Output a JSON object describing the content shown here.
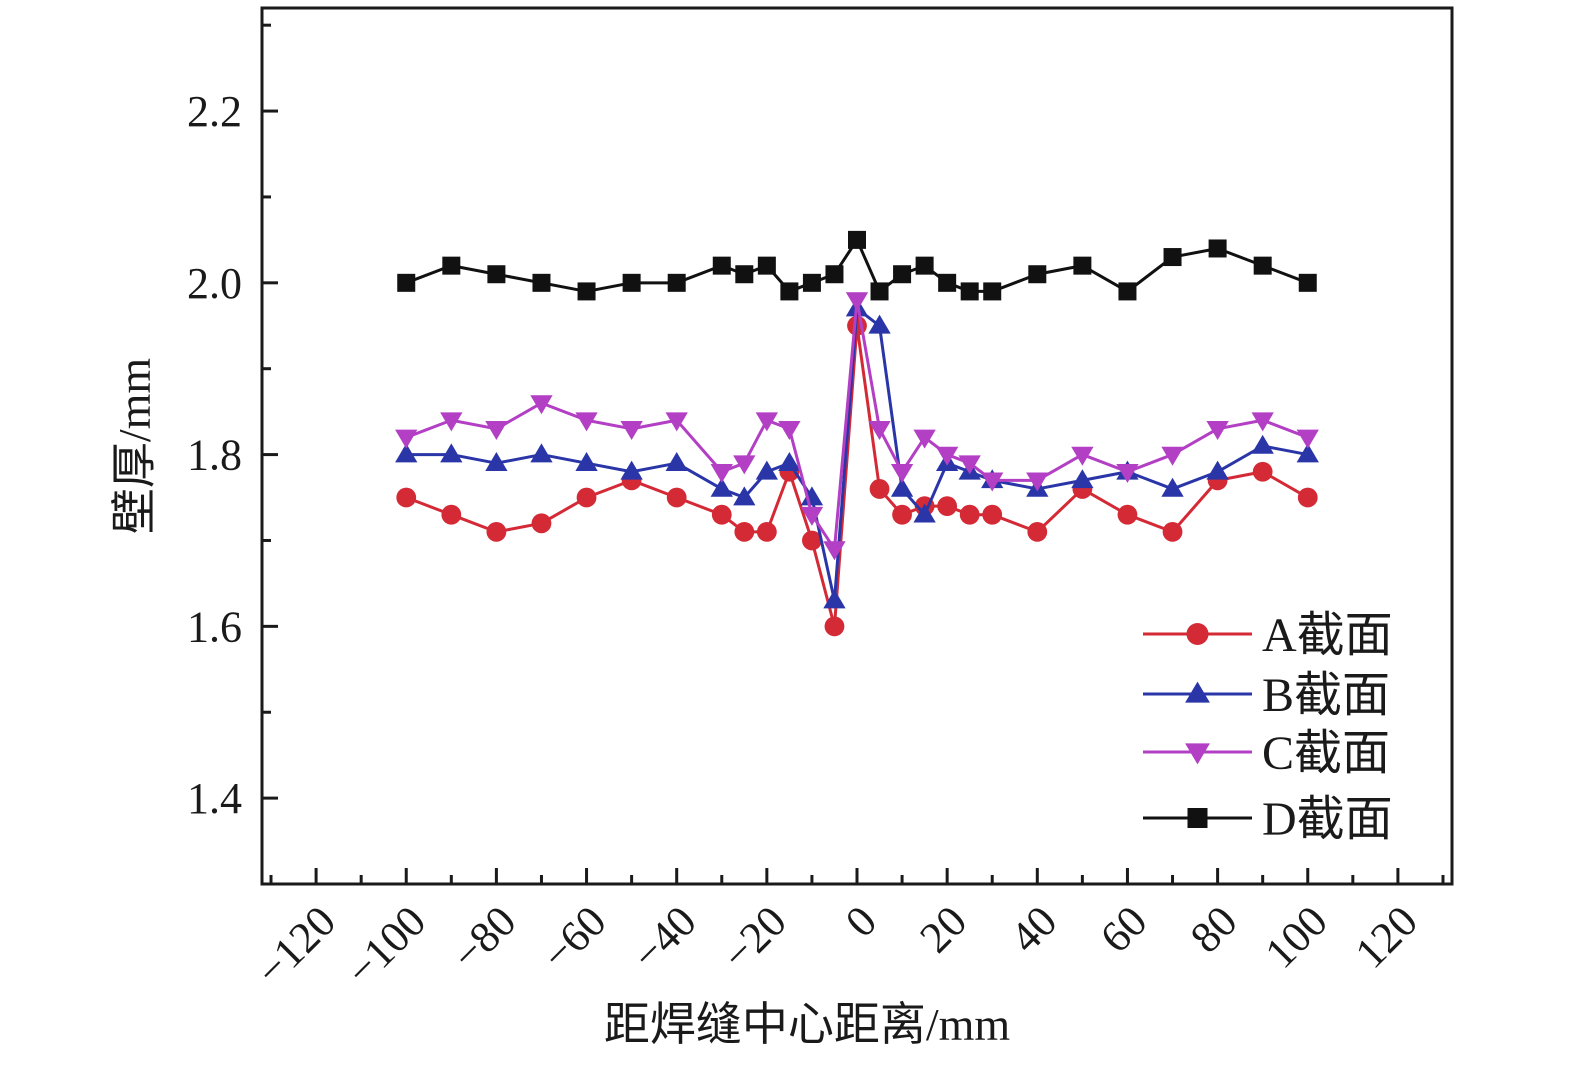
{
  "chart_data": {
    "type": "line",
    "xlabel": "距焊缝中心距离/mm",
    "ylabel": "壁厚/mm",
    "xlim": [
      -132,
      132
    ],
    "ylim": [
      1.3,
      2.32
    ],
    "x_ticks": [
      "−120",
      "−100",
      "−80",
      "−60",
      "−40",
      "−20",
      "0",
      "20",
      "40",
      "60",
      "80",
      "100",
      "120"
    ],
    "x_tick_values": [
      -120,
      -100,
      -80,
      -60,
      -40,
      -20,
      0,
      20,
      40,
      60,
      80,
      100,
      120
    ],
    "y_ticks": [
      "1.4",
      "1.6",
      "1.8",
      "2.0",
      "2.2"
    ],
    "y_tick_values": [
      1.4,
      1.6,
      1.8,
      2.0,
      2.2
    ],
    "x_minor_step": 10,
    "y_minor_step": 0.1,
    "grid": false,
    "legend_position": "bottom-right",
    "x": [
      -100,
      -90,
      -80,
      -70,
      -60,
      -50,
      -40,
      -30,
      -25,
      -20,
      -15,
      -10,
      -5,
      0,
      5,
      10,
      15,
      20,
      25,
      30,
      40,
      50,
      60,
      70,
      80,
      90,
      100
    ],
    "series": [
      {
        "name": "A截面",
        "color": "#d42a36",
        "marker": "circle",
        "values": [
          1.75,
          1.73,
          1.71,
          1.72,
          1.75,
          1.77,
          1.75,
          1.73,
          1.71,
          1.71,
          1.78,
          1.7,
          1.6,
          1.95,
          1.76,
          1.73,
          1.74,
          1.74,
          1.73,
          1.73,
          1.71,
          1.76,
          1.73,
          1.71,
          1.77,
          1.78,
          1.75
        ]
      },
      {
        "name": "B截面",
        "color": "#2a36a8",
        "marker": "triangle-up",
        "values": [
          1.8,
          1.8,
          1.79,
          1.8,
          1.79,
          1.78,
          1.79,
          1.76,
          1.75,
          1.78,
          1.79,
          1.75,
          1.63,
          1.97,
          1.95,
          1.76,
          1.73,
          1.79,
          1.78,
          1.77,
          1.76,
          1.77,
          1.78,
          1.76,
          1.78,
          1.81,
          1.8
        ]
      },
      {
        "name": "C截面",
        "color": "#b23fc4",
        "marker": "triangle-down",
        "values": [
          1.82,
          1.84,
          1.83,
          1.86,
          1.84,
          1.83,
          1.84,
          1.78,
          1.79,
          1.84,
          1.83,
          1.73,
          1.69,
          1.98,
          1.83,
          1.78,
          1.82,
          1.8,
          1.79,
          1.77,
          1.77,
          1.8,
          1.78,
          1.8,
          1.83,
          1.84,
          1.82
        ]
      },
      {
        "name": "D截面",
        "color": "#111111",
        "marker": "square",
        "values": [
          2.0,
          2.02,
          2.01,
          2.0,
          1.99,
          2.0,
          2.0,
          2.02,
          2.01,
          2.02,
          1.99,
          2.0,
          2.01,
          2.05,
          1.99,
          2.01,
          2.02,
          2.0,
          1.99,
          1.99,
          2.01,
          2.02,
          1.99,
          2.03,
          2.04,
          2.02,
          2.0
        ]
      }
    ]
  }
}
